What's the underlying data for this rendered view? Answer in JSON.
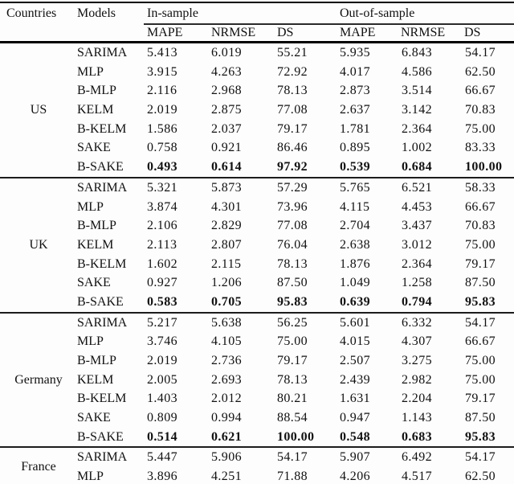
{
  "table": {
    "headers": {
      "countries": "Countries",
      "models": "Models",
      "in_sample": "In-sample",
      "out_of_sample": "Out-of-sample"
    },
    "sub_headers": [
      "MAPE",
      "NRMSE",
      "DS",
      "MAPE",
      "NRMSE",
      "DS"
    ],
    "blocks": [
      {
        "country": "US",
        "rows": [
          {
            "model": "SARIMA",
            "bold": false,
            "values": [
              "5.413",
              "6.019",
              "55.21",
              "5.935",
              "6.843",
              "54.17"
            ]
          },
          {
            "model": "MLP",
            "bold": false,
            "values": [
              "3.915",
              "4.263",
              "72.92",
              "4.017",
              "4.586",
              "62.50"
            ]
          },
          {
            "model": "B-MLP",
            "bold": false,
            "values": [
              "2.116",
              "2.968",
              "78.13",
              "2.873",
              "3.514",
              "66.67"
            ]
          },
          {
            "model": "KELM",
            "bold": false,
            "values": [
              "2.019",
              "2.875",
              "77.08",
              "2.637",
              "3.142",
              "70.83"
            ]
          },
          {
            "model": "B-KELM",
            "bold": false,
            "values": [
              "1.586",
              "2.037",
              "79.17",
              "1.781",
              "2.364",
              "75.00"
            ]
          },
          {
            "model": "SAKE",
            "bold": false,
            "values": [
              "0.758",
              "0.921",
              "86.46",
              "0.895",
              "1.002",
              "83.33"
            ]
          },
          {
            "model": "B-SAKE",
            "bold": true,
            "values": [
              "0.493",
              "0.614",
              "97.92",
              "0.539",
              "0.684",
              "100.00"
            ]
          }
        ]
      },
      {
        "country": "UK",
        "rows": [
          {
            "model": "SARIMA",
            "bold": false,
            "values": [
              "5.321",
              "5.873",
              "57.29",
              "5.765",
              "6.521",
              "58.33"
            ]
          },
          {
            "model": "MLP",
            "bold": false,
            "values": [
              "3.874",
              "4.301",
              "73.96",
              "4.115",
              "4.453",
              "66.67"
            ]
          },
          {
            "model": "B-MLP",
            "bold": false,
            "values": [
              "2.106",
              "2.829",
              "77.08",
              "2.704",
              "3.437",
              "70.83"
            ]
          },
          {
            "model": "KELM",
            "bold": false,
            "values": [
              "2.113",
              "2.807",
              "76.04",
              "2.638",
              "3.012",
              "75.00"
            ]
          },
          {
            "model": "B-KELM",
            "bold": false,
            "values": [
              "1.602",
              "2.115",
              "78.13",
              "1.876",
              "2.364",
              "79.17"
            ]
          },
          {
            "model": "SAKE",
            "bold": false,
            "values": [
              "0.927",
              "1.206",
              "87.50",
              "1.049",
              "1.258",
              "87.50"
            ]
          },
          {
            "model": "B-SAKE",
            "bold": true,
            "values": [
              "0.583",
              "0.705",
              "95.83",
              "0.639",
              "0.794",
              "95.83"
            ]
          }
        ]
      },
      {
        "country": "Germany",
        "rows": [
          {
            "model": "SARIMA",
            "bold": false,
            "values": [
              "5.217",
              "5.638",
              "56.25",
              "5.601",
              "6.332",
              "54.17"
            ]
          },
          {
            "model": "MLP",
            "bold": false,
            "values": [
              "3.746",
              "4.105",
              "75.00",
              "4.015",
              "4.307",
              "66.67"
            ]
          },
          {
            "model": "B-MLP",
            "bold": false,
            "values": [
              "2.019",
              "2.736",
              "79.17",
              "2.507",
              "3.275",
              "75.00"
            ]
          },
          {
            "model": "KELM",
            "bold": false,
            "values": [
              "2.005",
              "2.693",
              "78.13",
              "2.439",
              "2.982",
              "75.00"
            ]
          },
          {
            "model": "B-KELM",
            "bold": false,
            "values": [
              "1.403",
              "2.012",
              "80.21",
              "1.631",
              "2.204",
              "79.17"
            ]
          },
          {
            "model": "SAKE",
            "bold": false,
            "values": [
              "0.809",
              "0.994",
              "88.54",
              "0.947",
              "1.143",
              "87.50"
            ]
          },
          {
            "model": "B-SAKE",
            "bold": true,
            "values": [
              "0.514",
              "0.621",
              "100.00",
              "0.548",
              "0.683",
              "95.83"
            ]
          }
        ]
      },
      {
        "country": "France",
        "rows": [
          {
            "model": "SARIMA",
            "bold": false,
            "values": [
              "5.447",
              "5.906",
              "54.17",
              "5.907",
              "6.492",
              "54.17"
            ]
          },
          {
            "model": "MLP",
            "bold": false,
            "values": [
              "3.896",
              "4.251",
              "71.88",
              "4.206",
              "4.517",
              "62.50"
            ]
          }
        ]
      }
    ]
  }
}
